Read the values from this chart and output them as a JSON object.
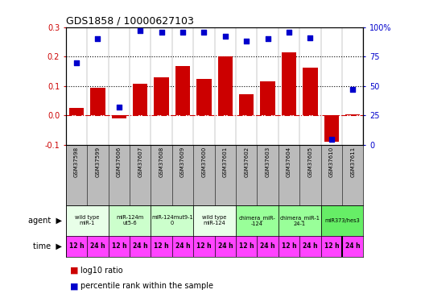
{
  "title": "GDS1858 / 10000627103",
  "samples": [
    "GSM37598",
    "GSM37599",
    "GSM37606",
    "GSM37607",
    "GSM37608",
    "GSM37609",
    "GSM37600",
    "GSM37601",
    "GSM37602",
    "GSM37603",
    "GSM37604",
    "GSM37605",
    "GSM37610",
    "GSM37611"
  ],
  "log10_ratio": [
    0.025,
    0.095,
    -0.01,
    0.107,
    0.13,
    0.167,
    0.123,
    0.201,
    0.073,
    0.115,
    0.215,
    0.163,
    -0.09,
    0.003
  ],
  "percentile_rank": [
    70,
    90,
    32,
    97,
    96,
    96,
    96,
    92,
    88,
    90,
    96,
    91,
    5,
    47
  ],
  "agent_groups": [
    {
      "label": "wild type\nmiR-1",
      "start": 0,
      "end": 2,
      "color": "#e8ffe8"
    },
    {
      "label": "miR-124m\nut5-6",
      "start": 2,
      "end": 4,
      "color": "#ccffcc"
    },
    {
      "label": "miR-124mut9-1\n0",
      "start": 4,
      "end": 6,
      "color": "#ccffcc"
    },
    {
      "label": "wild type\nmiR-124",
      "start": 6,
      "end": 8,
      "color": "#e8ffe8"
    },
    {
      "label": "chimera_miR-\n-124",
      "start": 8,
      "end": 10,
      "color": "#99ff99"
    },
    {
      "label": "chimera_miR-1\n24-1",
      "start": 10,
      "end": 12,
      "color": "#99ff99"
    },
    {
      "label": "miR373/hes3",
      "start": 12,
      "end": 14,
      "color": "#66ee66"
    }
  ],
  "time_labels": [
    "12 h",
    "24 h",
    "12 h",
    "24 h",
    "12 h",
    "24 h",
    "12 h",
    "24 h",
    "12 h",
    "24 h",
    "12 h",
    "24 h",
    "12 h",
    "24 h"
  ],
  "bar_color": "#cc0000",
  "dot_color": "#0000cc",
  "ylim_left": [
    -0.1,
    0.3
  ],
  "ylim_right": [
    0,
    100
  ],
  "yticks_left": [
    -0.1,
    0.0,
    0.1,
    0.2,
    0.3
  ],
  "yticks_right": [
    0,
    25,
    50,
    75,
    100
  ],
  "yticklabels_right": [
    "0",
    "25",
    "50",
    "75",
    "100%"
  ],
  "hlines": [
    0.1,
    0.2
  ],
  "zero_line_color": "#cc0000",
  "bg_color": "#ffffff",
  "sample_bg": "#bbbbbb",
  "time_bg": "#ff44ff",
  "agent_bg": "#ffffff"
}
